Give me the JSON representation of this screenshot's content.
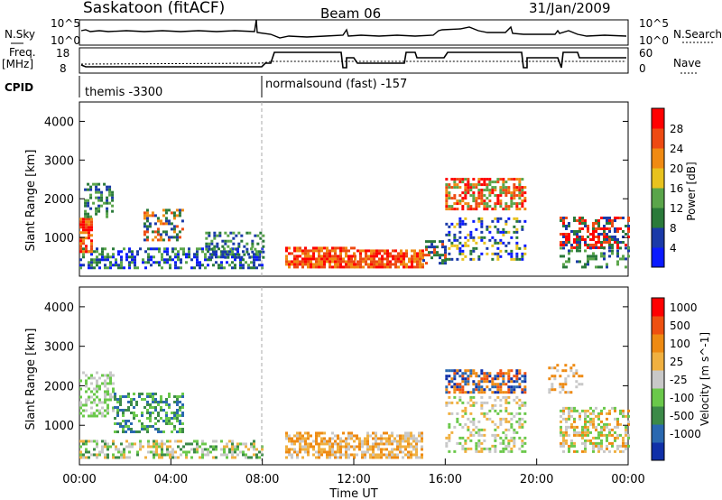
{
  "header": {
    "station": "Saskatoon (fitACF)",
    "beam": "Beam 06",
    "date": "31/Jan/2009"
  },
  "labels": {
    "nsky": "N.Sky",
    "nsky_hi": "10^5",
    "nsky_lo": "10^0",
    "nsearch": "N.Search",
    "freq": "Freq.",
    "freq_unit": "[MHz]",
    "cpid": "CPID",
    "nave": "Nave",
    "freq_hi": "18",
    "freq_lo": "8",
    "nave_hi": "60",
    "nave_lo": "0",
    "cpid_1": "themis -3300",
    "cpid_2": "normalsound (fast) -157"
  },
  "colors": {
    "power_scale": [
      "#0a1aff",
      "#1a3aa8",
      "#2a7a3a",
      "#5aa54a",
      "#e8c21e",
      "#f08a12",
      "#ee4a12",
      "#ff0000"
    ],
    "velocity_scale": [
      "#1030a8",
      "#2a68b0",
      "#3c8a48",
      "#6ac84a",
      "#c8c8c8",
      "#f0b040",
      "#ee8a12",
      "#ee5010",
      "#ff0000"
    ]
  },
  "chart_data": [
    {
      "type": "line",
      "title": "N.Sky / N.Search",
      "x_range_hours": [
        0,
        24
      ],
      "scale": "log",
      "ylim_labels": [
        "10^0",
        "10^5"
      ]
    },
    {
      "type": "line",
      "title": "Freq. / Nave",
      "x_range_hours": [
        0,
        24
      ],
      "series": [
        {
          "name": "Freq. [MHz]",
          "axis": "left",
          "ylim": [
            8,
            18
          ]
        },
        {
          "name": "Nave",
          "axis": "right",
          "ylim": [
            0,
            60
          ]
        }
      ]
    },
    {
      "type": "heatmap",
      "quantity": "Power",
      "ylabel": "Slant Range [km]",
      "yticks": [
        1000,
        2000,
        3000,
        4000
      ],
      "colorbar": {
        "label": "Power [dB]",
        "ticks": [
          4,
          8,
          12,
          16,
          20,
          24,
          28
        ]
      }
    },
    {
      "type": "heatmap",
      "quantity": "Velocity",
      "ylabel": "Slant Range [km]",
      "xlabel": "Time UT",
      "yticks": [
        1000,
        2000,
        3000,
        4000
      ],
      "xticks": [
        "00:00",
        "04:00",
        "08:00",
        "12:00",
        "16:00",
        "20:00",
        "00:00"
      ],
      "colorbar": {
        "label": "Velocity [m s^-1]",
        "ticks": [
          1000,
          500,
          100,
          25,
          -25,
          -100,
          -500,
          -1000
        ]
      }
    }
  ]
}
